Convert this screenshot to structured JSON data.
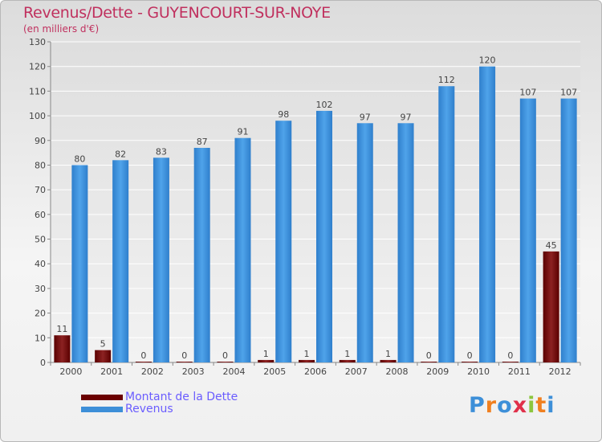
{
  "title": "Revenus/Dette - GUYENCOURT-SUR-NOYE",
  "subtitle": "(en milliers d'€)",
  "logo": {
    "letters": [
      "P",
      "r",
      "o",
      "x",
      "i",
      "t",
      "i"
    ]
  },
  "colors": {
    "title": "#c0305e",
    "dette": "#6b0000",
    "revenus": "#3d8fd8",
    "logo_letters": [
      "#3d8fd8",
      "#f08020",
      "#3d8fd8",
      "#e0304a",
      "#8cc63e",
      "#f08020",
      "#3d8fd8"
    ]
  },
  "chart_data": {
    "type": "bar",
    "categories": [
      "2000",
      "2001",
      "2002",
      "2003",
      "2004",
      "2005",
      "2006",
      "2007",
      "2008",
      "2009",
      "2010",
      "2011",
      "2012"
    ],
    "series": [
      {
        "name": "Montant de la Dette",
        "values": [
          11,
          5,
          0,
          0,
          0,
          1,
          1,
          1,
          1,
          0,
          0,
          0,
          45
        ]
      },
      {
        "name": "Revenus",
        "values": [
          80,
          82,
          83,
          87,
          91,
          98,
          102,
          97,
          97,
          112,
          120,
          107,
          107
        ]
      }
    ],
    "ylim": [
      0,
      130
    ],
    "yticks": [
      0,
      10,
      20,
      30,
      40,
      50,
      60,
      70,
      80,
      90,
      100,
      110,
      120,
      130
    ],
    "grid": true,
    "legend_position": "bottom-left"
  }
}
